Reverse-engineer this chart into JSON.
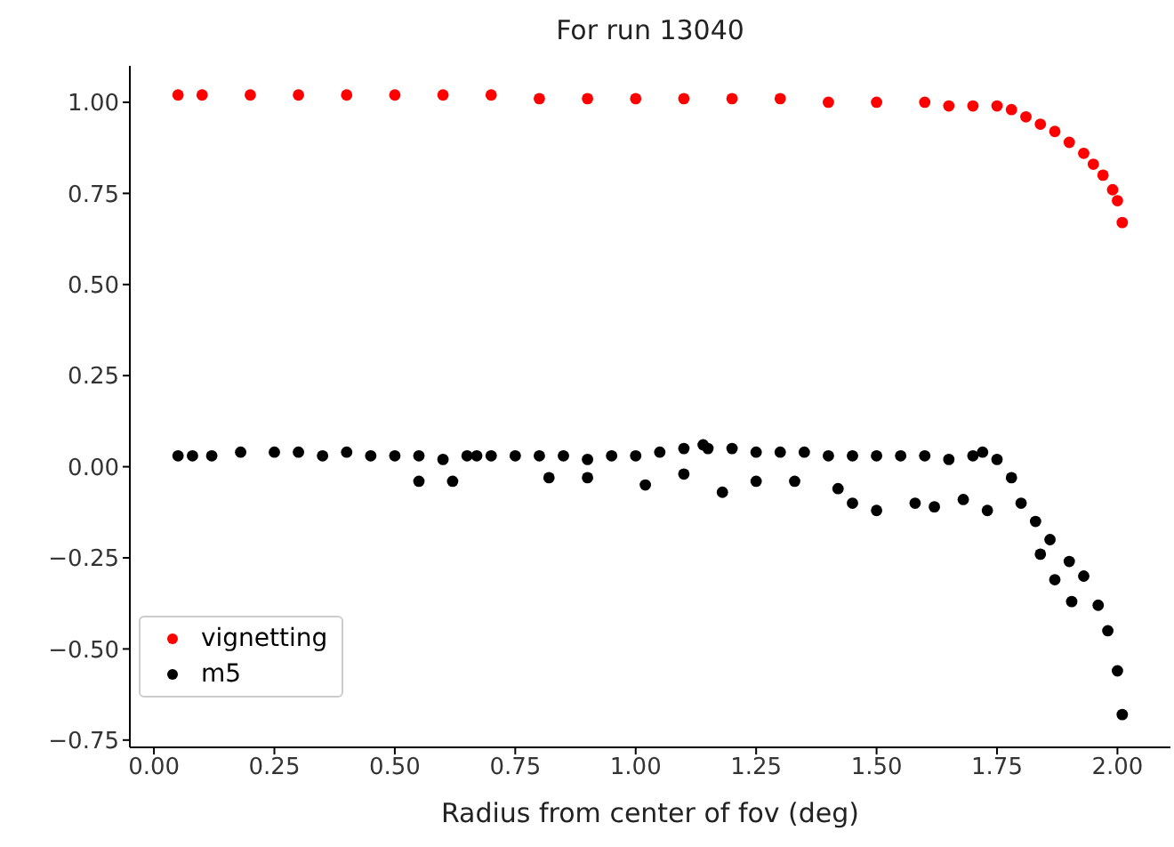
{
  "chart_data": {
    "type": "scatter",
    "title": "For run 13040",
    "xlabel": "Radius from center of fov (deg)",
    "xlim": [
      -0.05,
      2.11
    ],
    "xticks": [
      {
        "value": 0,
        "label": "0.00"
      },
      {
        "value": 0.25,
        "label": "0.25"
      },
      {
        "value": 0.5,
        "label": "0.50"
      },
      {
        "value": 0.75,
        "label": "0.75"
      },
      {
        "value": 1,
        "label": "1.00"
      },
      {
        "value": 1.25,
        "label": "1.25"
      },
      {
        "value": 1.5,
        "label": "1.50"
      },
      {
        "value": 1.75,
        "label": "1.75"
      },
      {
        "value": 2,
        "label": "2.00"
      }
    ],
    "ylim": [
      -0.77,
      1.1
    ],
    "yticks": [
      {
        "value": -0.75,
        "label": "−0.75"
      },
      {
        "value": -0.5,
        "label": "−0.50"
      },
      {
        "value": -0.25,
        "label": "−0.25"
      },
      {
        "value": 0,
        "label": "0.00"
      },
      {
        "value": 0.25,
        "label": "0.25"
      },
      {
        "value": 0.5,
        "label": "0.50"
      },
      {
        "value": 0.75,
        "label": "0.75"
      },
      {
        "value": 1,
        "label": "1.00"
      }
    ],
    "grid": false,
    "legend": "bottom left",
    "marker": "circle",
    "series": [
      {
        "name": "vignetting",
        "color": "#ff0000",
        "x": [
          0.05,
          0.1,
          0.2,
          0.3,
          0.4,
          0.5,
          0.6,
          0.7,
          0.8,
          0.9,
          1.0,
          1.1,
          1.2,
          1.3,
          1.4,
          1.5,
          1.6,
          1.65,
          1.7,
          1.75,
          1.78,
          1.81,
          1.84,
          1.87,
          1.9,
          1.93,
          1.95,
          1.97,
          1.99,
          2.0,
          2.01
        ],
        "values": [
          1.02,
          1.02,
          1.02,
          1.02,
          1.02,
          1.02,
          1.02,
          1.02,
          1.01,
          1.01,
          1.01,
          1.01,
          1.01,
          1.01,
          1.0,
          1.0,
          1.0,
          0.99,
          0.99,
          0.99,
          0.98,
          0.96,
          0.94,
          0.92,
          0.89,
          0.86,
          0.83,
          0.8,
          0.76,
          0.73,
          0.67
        ]
      },
      {
        "name": "m5",
        "color": "#000000",
        "x": [
          0.05,
          0.08,
          0.12,
          0.18,
          0.25,
          0.3,
          0.35,
          0.4,
          0.45,
          0.5,
          0.55,
          0.6,
          0.65,
          0.67,
          0.7,
          0.75,
          0.8,
          0.85,
          0.9,
          0.95,
          1.0,
          1.05,
          1.1,
          1.14,
          1.15,
          1.2,
          1.25,
          1.3,
          1.35,
          1.4,
          1.45,
          1.5,
          1.55,
          1.6,
          1.65,
          1.7,
          1.72,
          1.75,
          1.78,
          1.8,
          1.83,
          1.86,
          1.9,
          1.93,
          1.96,
          1.98,
          2.0,
          2.01,
          0.55,
          0.62,
          0.82,
          0.9,
          1.02,
          1.1,
          1.18,
          1.25,
          1.33,
          1.42,
          1.45,
          1.5,
          1.58,
          1.62,
          1.68,
          1.73,
          1.84,
          1.87,
          1.905
        ],
        "values": [
          0.03,
          0.03,
          0.03,
          0.04,
          0.04,
          0.04,
          0.03,
          0.04,
          0.03,
          0.03,
          0.03,
          0.02,
          0.03,
          0.03,
          0.03,
          0.03,
          0.03,
          0.03,
          0.02,
          0.03,
          0.03,
          0.04,
          0.05,
          0.06,
          0.05,
          0.05,
          0.04,
          0.04,
          0.04,
          0.03,
          0.03,
          0.03,
          0.03,
          0.03,
          0.02,
          0.03,
          0.04,
          0.02,
          -0.03,
          -0.1,
          -0.15,
          -0.2,
          -0.26,
          -0.3,
          -0.38,
          -0.45,
          -0.56,
          -0.68,
          -0.04,
          -0.04,
          -0.03,
          -0.03,
          -0.05,
          -0.02,
          -0.07,
          -0.04,
          -0.04,
          -0.06,
          -0.1,
          -0.12,
          -0.1,
          -0.11,
          -0.09,
          -0.12,
          -0.24,
          -0.31,
          -0.37
        ]
      }
    ]
  }
}
